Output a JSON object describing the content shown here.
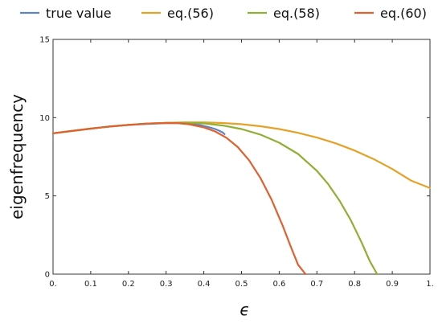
{
  "chart_data": {
    "type": "line",
    "xlabel": "ϵ",
    "ylabel": "eigenfrequency",
    "xlim": [
      0,
      1
    ],
    "ylim": [
      0,
      15
    ],
    "grid": false,
    "legend_position": "top",
    "x_ticks": [
      {
        "value": 0.0,
        "label": "0."
      },
      {
        "value": 0.1,
        "label": "0.1"
      },
      {
        "value": 0.2,
        "label": "0.2"
      },
      {
        "value": 0.3,
        "label": "0.3"
      },
      {
        "value": 0.4,
        "label": "0.4"
      },
      {
        "value": 0.5,
        "label": "0.5"
      },
      {
        "value": 0.6,
        "label": "0.6"
      },
      {
        "value": 0.7,
        "label": "0.7"
      },
      {
        "value": 0.8,
        "label": "0.8"
      },
      {
        "value": 0.9,
        "label": "0.9"
      },
      {
        "value": 1.0,
        "label": "1."
      }
    ],
    "y_ticks": [
      {
        "value": 0,
        "label": "0"
      },
      {
        "value": 5,
        "label": "5"
      },
      {
        "value": 10,
        "label": "10"
      },
      {
        "value": 15,
        "label": "15"
      }
    ],
    "series": [
      {
        "name": "true value",
        "color": "#5b84c4",
        "x": [
          0.0,
          0.05,
          0.1,
          0.15,
          0.2,
          0.25,
          0.3,
          0.33,
          0.36,
          0.39,
          0.41,
          0.43,
          0.44,
          0.45,
          0.455
        ],
        "y": [
          9.0,
          9.15,
          9.3,
          9.43,
          9.53,
          9.6,
          9.65,
          9.66,
          9.62,
          9.52,
          9.41,
          9.27,
          9.17,
          9.05,
          8.95
        ]
      },
      {
        "name": "eq.(56)",
        "color": "#e4a227",
        "x": [
          0.0,
          0.05,
          0.1,
          0.15,
          0.2,
          0.25,
          0.3,
          0.35,
          0.4,
          0.45,
          0.5,
          0.55,
          0.6,
          0.65,
          0.7,
          0.75,
          0.8,
          0.85,
          0.9,
          0.95,
          1.0
        ],
        "y": [
          9.0,
          9.15,
          9.3,
          9.43,
          9.54,
          9.62,
          9.67,
          9.7,
          9.7,
          9.66,
          9.58,
          9.45,
          9.27,
          9.03,
          8.73,
          8.36,
          7.9,
          7.36,
          6.72,
          5.98,
          5.5
        ]
      },
      {
        "name": "eq.(58)",
        "color": "#8fb032",
        "x": [
          0.0,
          0.05,
          0.1,
          0.15,
          0.2,
          0.25,
          0.3,
          0.35,
          0.4,
          0.45,
          0.5,
          0.55,
          0.6,
          0.65,
          0.7,
          0.73,
          0.76,
          0.79,
          0.82,
          0.84,
          0.86
        ],
        "y": [
          9.0,
          9.15,
          9.3,
          9.43,
          9.54,
          9.62,
          9.67,
          9.68,
          9.63,
          9.5,
          9.27,
          8.92,
          8.4,
          7.68,
          6.6,
          5.75,
          4.7,
          3.45,
          1.95,
          0.85,
          0.0
        ]
      },
      {
        "name": "eq.(60)",
        "color": "#e0602e",
        "x": [
          0.0,
          0.05,
          0.1,
          0.15,
          0.2,
          0.25,
          0.3,
          0.33,
          0.36,
          0.4,
          0.43,
          0.46,
          0.49,
          0.52,
          0.55,
          0.58,
          0.61,
          0.63,
          0.65,
          0.67
        ],
        "y": [
          9.0,
          9.15,
          9.3,
          9.43,
          9.54,
          9.62,
          9.66,
          9.65,
          9.58,
          9.38,
          9.12,
          8.72,
          8.12,
          7.28,
          6.15,
          4.75,
          3.05,
          1.8,
          0.6,
          0.0
        ]
      }
    ]
  }
}
